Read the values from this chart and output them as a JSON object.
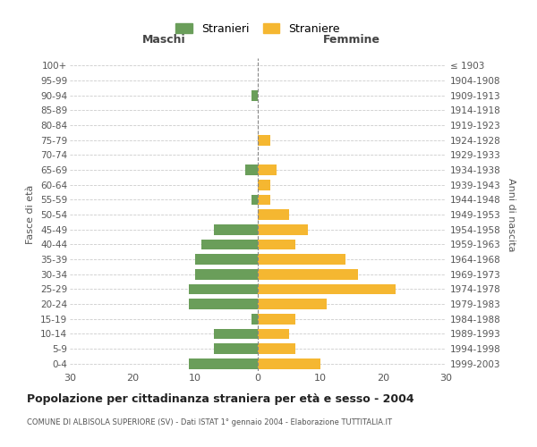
{
  "age_groups": [
    "0-4",
    "5-9",
    "10-14",
    "15-19",
    "20-24",
    "25-29",
    "30-34",
    "35-39",
    "40-44",
    "45-49",
    "50-54",
    "55-59",
    "60-64",
    "65-69",
    "70-74",
    "75-79",
    "80-84",
    "85-89",
    "90-94",
    "95-99",
    "100+"
  ],
  "birth_years": [
    "1999-2003",
    "1994-1998",
    "1989-1993",
    "1984-1988",
    "1979-1983",
    "1974-1978",
    "1969-1973",
    "1964-1968",
    "1959-1963",
    "1954-1958",
    "1949-1953",
    "1944-1948",
    "1939-1943",
    "1934-1938",
    "1929-1933",
    "1924-1928",
    "1919-1923",
    "1914-1918",
    "1909-1913",
    "1904-1908",
    "≤ 1903"
  ],
  "maschi": [
    11,
    7,
    7,
    1,
    11,
    11,
    10,
    10,
    9,
    7,
    0,
    1,
    0,
    2,
    0,
    0,
    0,
    0,
    1,
    0,
    0
  ],
  "femmine": [
    10,
    6,
    5,
    6,
    11,
    22,
    16,
    14,
    6,
    8,
    5,
    2,
    2,
    3,
    0,
    2,
    0,
    0,
    0,
    0,
    0
  ],
  "maschi_color": "#6a9e5a",
  "femmine_color": "#f5b731",
  "title": "Popolazione per cittadinanza straniera per età e sesso - 2004",
  "subtitle": "COMUNE DI ALBISOLA SUPERIORE (SV) - Dati ISTAT 1° gennaio 2004 - Elaborazione TUTTITALIA.IT",
  "xlabel_left": "Maschi",
  "xlabel_right": "Femmine",
  "ylabel_left": "Fasce di età",
  "ylabel_right": "Anni di nascita",
  "legend_maschi": "Stranieri",
  "legend_femmine": "Straniere",
  "xlim": 30,
  "background_color": "#ffffff",
  "grid_color": "#cccccc"
}
